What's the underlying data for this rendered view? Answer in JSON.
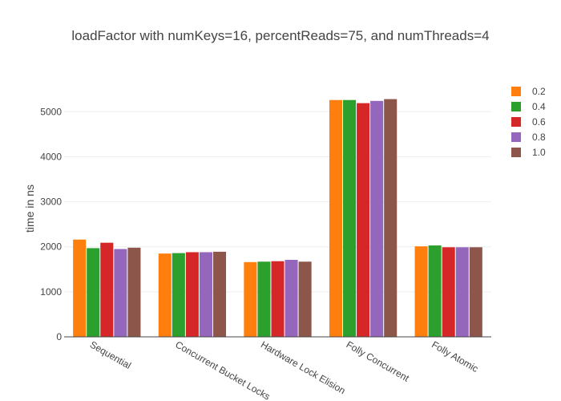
{
  "chart_data": {
    "type": "bar",
    "title": "loadFactor with numKeys=16, percentReads=75, and numThreads=4",
    "xlabel": "",
    "ylabel": "time in ns",
    "ylim": [
      0,
      5700
    ],
    "yticks": [
      0,
      1000,
      2000,
      3000,
      4000,
      5000
    ],
    "grid": true,
    "legend_position": "right",
    "categories": [
      "Sequential",
      "Concurrent Bucket Locks",
      "Hardware Lock Elision",
      "Folly Concurrent",
      "Folly Atomic"
    ],
    "series": [
      {
        "name": "0.2",
        "color": "#ff7f0e",
        "values": [
          2160,
          1850,
          1660,
          5260,
          2010
        ]
      },
      {
        "name": "0.4",
        "color": "#2ca02c",
        "values": [
          1970,
          1860,
          1670,
          5260,
          2030
        ]
      },
      {
        "name": "0.6",
        "color": "#d62728",
        "values": [
          2090,
          1880,
          1680,
          5190,
          1990
        ]
      },
      {
        "name": "0.8",
        "color": "#9467bd",
        "values": [
          1950,
          1880,
          1710,
          5240,
          1990
        ]
      },
      {
        "name": "1.0",
        "color": "#8c564b",
        "values": [
          1980,
          1890,
          1670,
          5280,
          1990
        ]
      }
    ]
  }
}
